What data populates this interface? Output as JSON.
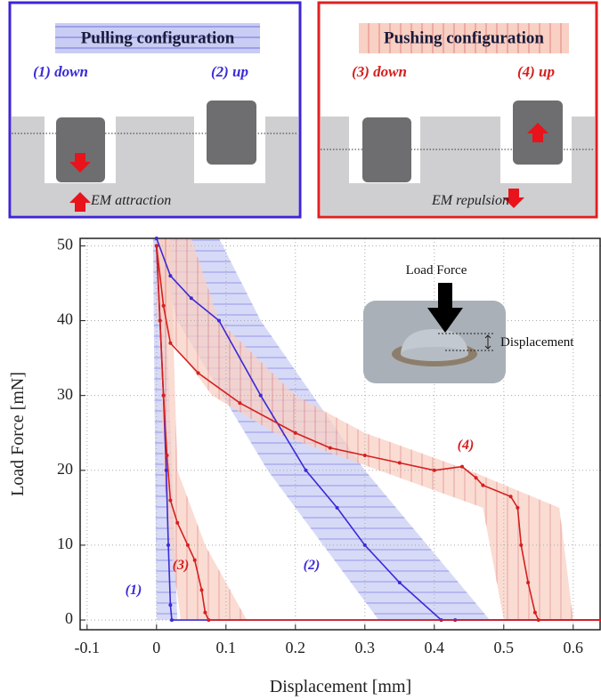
{
  "panels": [
    {
      "title": "Pulling configuration",
      "left": "(1) down",
      "right": "(2) up",
      "caption": "EM attraction"
    },
    {
      "title": "Pushing configuration",
      "left": "(3) down",
      "right": "(4) up",
      "caption": "EM repulsion"
    }
  ],
  "chart_data": {
    "type": "line",
    "xlabel": "Displacement [mm]",
    "ylabel": "Load Force [mN]",
    "xlim": [
      -0.11,
      0.64
    ],
    "ylim": [
      -1.3,
      51
    ],
    "xticks": [
      -0.1,
      0,
      0.1,
      0.2,
      0.3,
      0.4,
      0.5,
      0.6
    ],
    "yticks": [
      0,
      10,
      20,
      30,
      40,
      50
    ],
    "grid": true,
    "inset": {
      "force_label": "Load Force",
      "displacement_label": "Displacement"
    },
    "series": [
      {
        "name": "(1)",
        "color": "#3a2bd6",
        "x": [
          0.0,
          0.005,
          0.01,
          0.014,
          0.017,
          0.02,
          0.022,
          0.64
        ],
        "values": [
          50,
          40,
          30,
          20,
          10,
          2,
          0,
          0
        ],
        "band": {
          "y": [
            51,
            0
          ],
          "x_low": [
            -0.005,
            0.0
          ],
          "x_high": [
            0.01,
            0.03
          ]
        }
      },
      {
        "name": "(2)",
        "color": "#3a2bd6",
        "x": [
          0.0,
          0.02,
          0.05,
          0.09,
          0.15,
          0.215,
          0.26,
          0.3,
          0.35,
          0.41,
          0.43,
          0.64
        ],
        "values": [
          51,
          46,
          43,
          40,
          30,
          20,
          15,
          10,
          5,
          0,
          0,
          0
        ],
        "band": {
          "y": [
            51,
            40,
            20,
            0
          ],
          "x_low": [
            0.0,
            0.03,
            0.16,
            0.32
          ],
          "x_high": [
            0.09,
            0.15,
            0.3,
            0.48
          ]
        }
      },
      {
        "name": "(3)",
        "color": "#d42020",
        "x": [
          0.0,
          0.005,
          0.01,
          0.015,
          0.02,
          0.03,
          0.045,
          0.055,
          0.065,
          0.07,
          0.075,
          0.64
        ],
        "values": [
          50,
          40,
          30,
          22,
          16,
          13,
          10,
          8,
          4,
          1,
          0,
          0
        ],
        "band": {
          "y": [
            51,
            20,
            10,
            0
          ],
          "x_low": [
            0.0,
            0.01,
            0.02,
            0.035
          ],
          "x_high": [
            0.02,
            0.03,
            0.07,
            0.13
          ]
        }
      },
      {
        "name": "(4)",
        "color": "#d42020",
        "x": [
          0.0,
          0.01,
          0.02,
          0.06,
          0.12,
          0.2,
          0.25,
          0.3,
          0.35,
          0.4,
          0.44,
          0.46,
          0.47,
          0.51,
          0.52,
          0.525,
          0.535,
          0.545,
          0.55,
          0.64
        ],
        "values": [
          50,
          42,
          37,
          33,
          29,
          25,
          23,
          22,
          21,
          20,
          20.5,
          19,
          18,
          16.5,
          15,
          10,
          5,
          1,
          0,
          0
        ],
        "band": {
          "y": [
            51,
            40,
            30,
            25,
            20,
            15,
            0
          ],
          "x_low": [
            0.0,
            0.0,
            0.08,
            0.17,
            0.32,
            0.47,
            0.5
          ],
          "x_high": [
            0.05,
            0.09,
            0.2,
            0.3,
            0.45,
            0.58,
            0.6
          ]
        }
      }
    ]
  }
}
